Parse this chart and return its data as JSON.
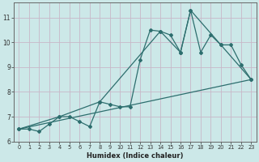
{
  "title": "",
  "xlabel": "Humidex (Indice chaleur)",
  "bg_color": "#cce8e8",
  "grid_color": "#c8b8c8",
  "line_color": "#2d6e6e",
  "xlim": [
    -0.5,
    23.5
  ],
  "ylim": [
    6,
    11.6
  ],
  "yticks": [
    6,
    7,
    8,
    9,
    10,
    11
  ],
  "xticks": [
    0,
    1,
    2,
    3,
    4,
    5,
    6,
    7,
    8,
    9,
    10,
    11,
    12,
    13,
    14,
    15,
    16,
    17,
    18,
    19,
    20,
    21,
    22,
    23
  ],
  "series1_x": [
    0,
    1,
    2,
    3,
    4,
    5,
    6,
    7,
    8,
    9,
    10,
    11,
    12,
    13,
    14,
    15,
    16,
    17,
    18,
    19,
    20,
    21,
    22,
    23
  ],
  "series1_y": [
    6.5,
    6.5,
    6.4,
    6.7,
    7.0,
    7.0,
    6.8,
    6.6,
    7.6,
    7.5,
    7.4,
    7.4,
    9.3,
    10.5,
    10.45,
    10.3,
    9.6,
    11.3,
    9.6,
    10.3,
    9.9,
    9.9,
    9.1,
    8.5
  ],
  "series2_x": [
    0,
    23
  ],
  "series2_y": [
    6.5,
    8.5
  ],
  "series3_x": [
    0,
    4,
    8,
    14,
    16,
    17,
    20,
    23
  ],
  "series3_y": [
    6.5,
    7.0,
    7.6,
    10.45,
    9.6,
    11.3,
    9.9,
    8.5
  ]
}
